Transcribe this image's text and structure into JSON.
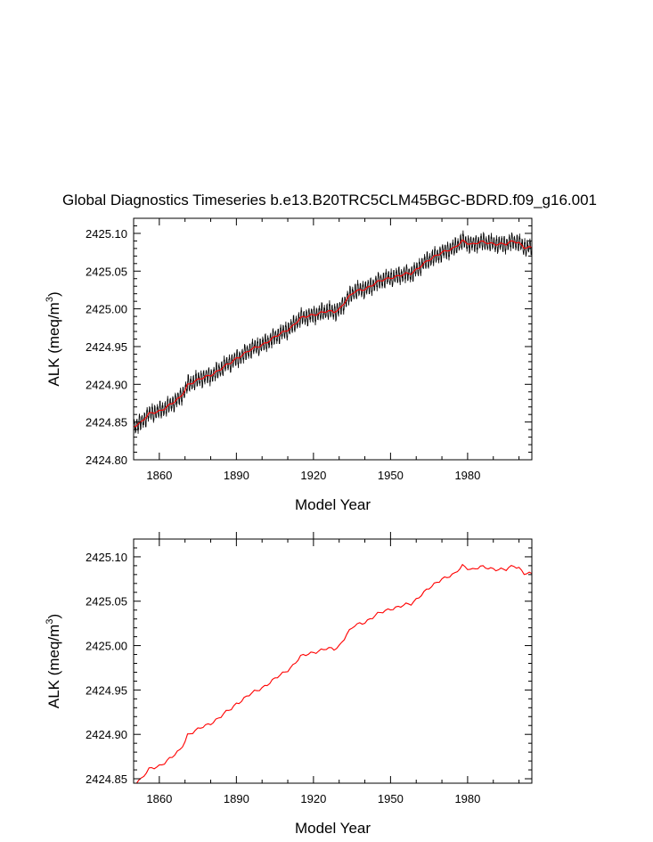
{
  "figure_title": "Global Diagnostics Timeseries b.e13.B20TRC5CLM45BGC-BDRD.f09_g16.001",
  "colors": {
    "monthly": "#000000",
    "annual": "#ff0000",
    "axes": "#000000"
  },
  "chart_data": [
    {
      "type": "line",
      "title": "Global Diagnostics Timeseries b.e13.B20TRC5CLM45BGC-BDRD.f09_g16.001",
      "xlabel": "Model Year",
      "ylabel_main": "ALK (meq/m",
      "ylabel_sup": "3",
      "ylabel_close": ")",
      "xlim": [
        1850,
        2005
      ],
      "ylim": [
        2424.8,
        2425.12
      ],
      "x_ticks": [
        1860,
        1890,
        1920,
        1950,
        1980
      ],
      "x_tick_labels": [
        "1860",
        "1890",
        "1920",
        "1950",
        "1980"
      ],
      "y_ticks": [
        2424.8,
        2424.85,
        2424.9,
        2424.95,
        2425.0,
        2425.05,
        2425.1
      ],
      "y_tick_labels": [
        "2424.80",
        "2424.85",
        "2424.90",
        "2424.95",
        "2425.00",
        "2425.05",
        "2425.10"
      ],
      "monthly_amplitude": 0.011,
      "series": [
        {
          "name": "monthly",
          "color": "#000000",
          "style": "seasonal-monthly"
        },
        {
          "name": "annual",
          "color": "#ff0000",
          "style": "annual-mean"
        }
      ],
      "annual_anchors": {
        "x": [
          1850,
          1853,
          1856,
          1860,
          1865,
          1868,
          1870,
          1871,
          1875,
          1880,
          1884,
          1888,
          1890,
          1895,
          1900,
          1905,
          1910,
          1912,
          1915,
          1920,
          1925,
          1928,
          1930,
          1933,
          1936,
          1940,
          1945,
          1950,
          1954,
          1958,
          1962,
          1966,
          1970,
          1975,
          1978,
          1982,
          1985,
          1990,
          1995,
          1998,
          2000,
          2002,
          2005
        ],
        "y": [
          2424.845,
          2424.85,
          2424.86,
          2424.865,
          2424.874,
          2424.882,
          2424.893,
          2424.9,
          2424.905,
          2424.913,
          2424.92,
          2424.929,
          2424.935,
          2424.944,
          2424.953,
          2424.962,
          2424.973,
          2424.978,
          2424.987,
          2424.993,
          2424.996,
          2424.996,
          2425.0,
          2425.013,
          2425.022,
          2425.027,
          2425.035,
          2425.042,
          2425.044,
          2425.047,
          2425.058,
          2425.066,
          2425.076,
          2425.08,
          2425.09,
          2425.086,
          2425.088,
          2425.087,
          2425.085,
          2425.09,
          2425.088,
          2425.082,
          2425.08
        ]
      }
    },
    {
      "type": "line",
      "title": "",
      "xlabel": "Model Year",
      "ylabel_main": "ALK (meq/m",
      "ylabel_sup": "3",
      "ylabel_close": ")",
      "xlim": [
        1850,
        2005
      ],
      "ylim": [
        2424.845,
        2425.12
      ],
      "x_ticks": [
        1860,
        1890,
        1920,
        1950,
        1980
      ],
      "x_tick_labels": [
        "1860",
        "1890",
        "1920",
        "1950",
        "1980"
      ],
      "y_ticks": [
        2424.85,
        2424.9,
        2424.95,
        2425.0,
        2425.05,
        2425.1
      ],
      "y_tick_labels": [
        "2424.85",
        "2424.90",
        "2424.95",
        "2425.00",
        "2425.05",
        "2425.10"
      ],
      "series": [
        {
          "name": "annual",
          "color": "#ff0000",
          "style": "annual-mean"
        }
      ],
      "annual_anchors": {
        "x": [
          1850,
          1853,
          1856,
          1860,
          1865,
          1868,
          1870,
          1871,
          1875,
          1880,
          1884,
          1888,
          1890,
          1895,
          1900,
          1905,
          1910,
          1912,
          1915,
          1920,
          1925,
          1928,
          1930,
          1933,
          1936,
          1940,
          1945,
          1950,
          1954,
          1958,
          1962,
          1966,
          1970,
          1975,
          1978,
          1982,
          1985,
          1990,
          1995,
          1998,
          2000,
          2002,
          2005
        ],
        "y": [
          2424.845,
          2424.85,
          2424.86,
          2424.865,
          2424.874,
          2424.882,
          2424.893,
          2424.9,
          2424.905,
          2424.913,
          2424.92,
          2424.929,
          2424.935,
          2424.944,
          2424.953,
          2424.962,
          2424.973,
          2424.978,
          2424.987,
          2424.993,
          2424.996,
          2424.996,
          2425.0,
          2425.013,
          2425.022,
          2425.027,
          2425.035,
          2425.042,
          2425.044,
          2425.047,
          2425.058,
          2425.066,
          2425.076,
          2425.08,
          2425.09,
          2425.086,
          2425.088,
          2425.087,
          2425.085,
          2425.09,
          2425.088,
          2425.082,
          2425.08
        ]
      }
    }
  ]
}
